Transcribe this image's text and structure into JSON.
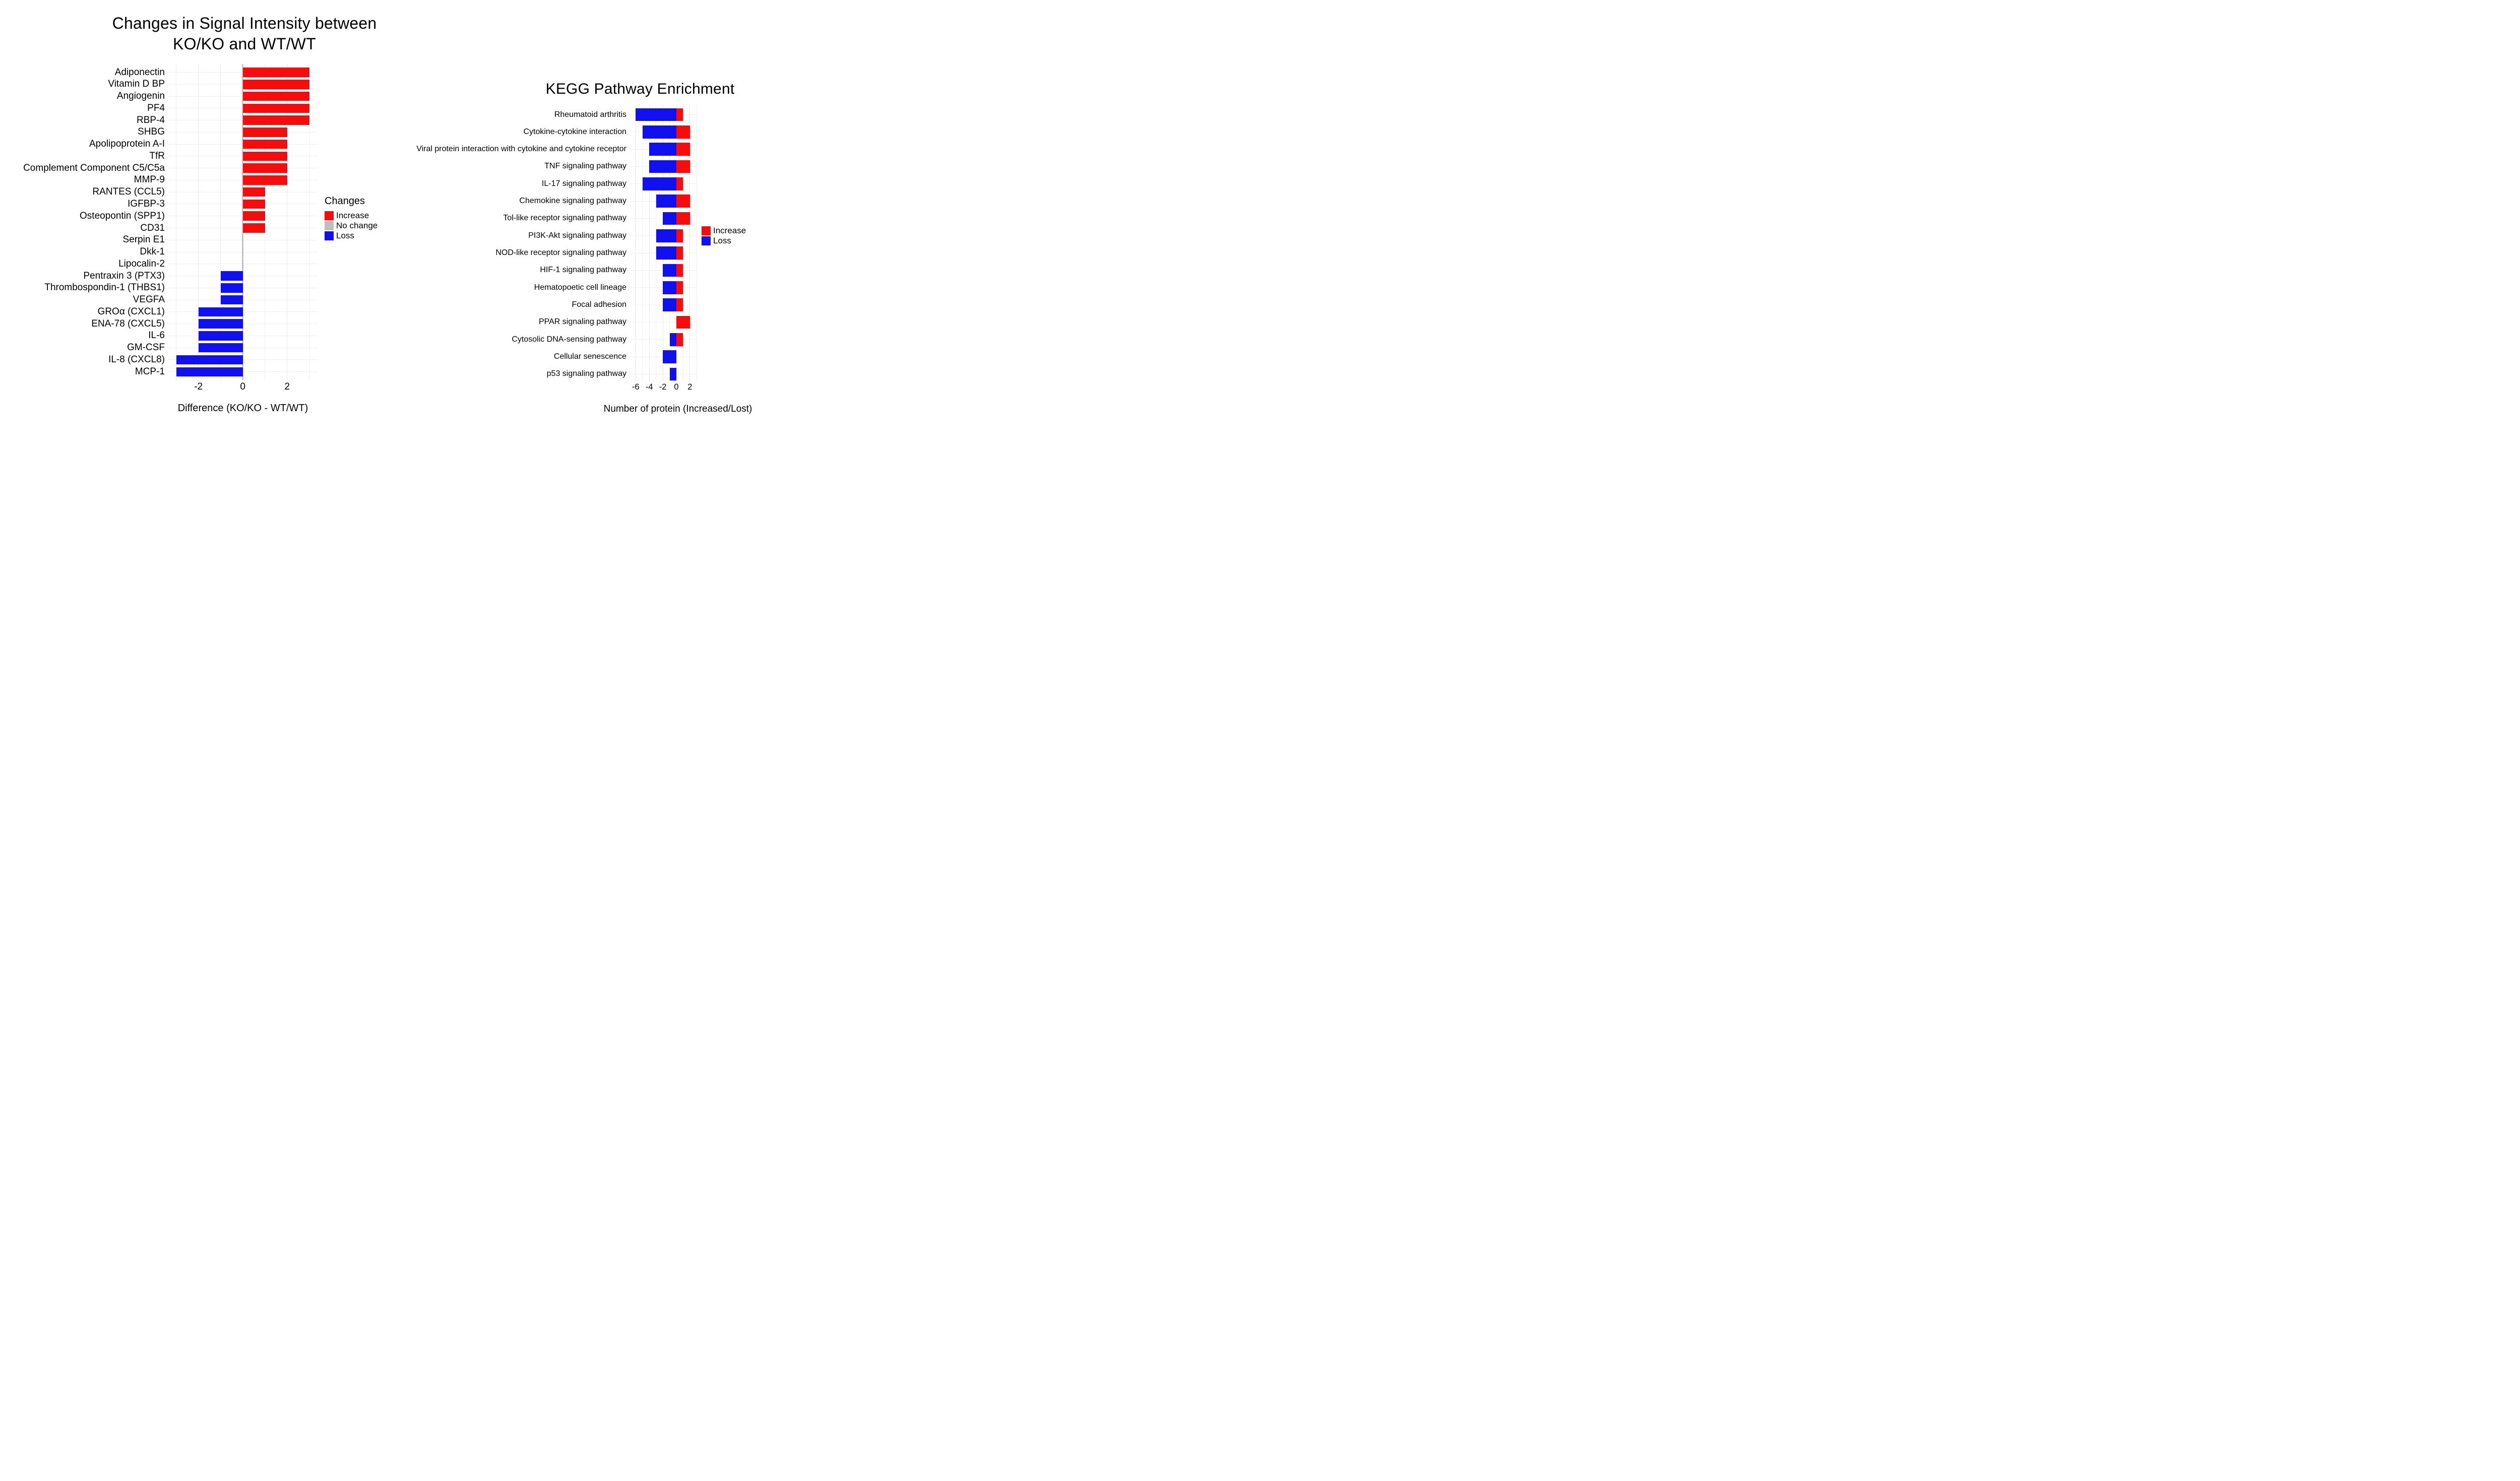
{
  "page": {
    "background": "#ffffff"
  },
  "left_chart_title_lines": [
    "Changes in Signal Intensity between",
    "KO/KO and WT/WT"
  ],
  "chart_data": [
    {
      "type": "bar",
      "orientation": "horizontal",
      "title": "Changes in Signal Intensity between KO/KO and WT/WT",
      "xlabel": "Difference (KO/KO - WT/WT)",
      "ylabel": "",
      "xticks": [
        -2,
        0,
        2
      ],
      "xlim": [
        -3.35,
        3.35
      ],
      "grid": true,
      "colors": {
        "increase": "#f60c0c",
        "no_change": "#bebebe",
        "loss": "#1010f0"
      },
      "legend": {
        "title": "Changes",
        "position": "right",
        "items": [
          {
            "label": "Increase",
            "color": "#f60c0c"
          },
          {
            "label": "No change",
            "color": "#bebebe"
          },
          {
            "label": "Loss",
            "color": "#1010f0"
          }
        ]
      },
      "categories": [
        "Adiponectin",
        "Vitamin D BP",
        "Angiogenin",
        "PF4",
        "RBP-4",
        "SHBG",
        "Apolipoprotein A-I",
        "TfR",
        "Complement Component C5/C5a",
        "MMP-9",
        "RANTES (CCL5)",
        "IGFBP-3",
        "Osteopontin (SPP1)",
        "CD31",
        "Serpin E1",
        "Dkk-1",
        "Lipocalin-2",
        "Pentraxin 3 (PTX3)",
        "Thrombospondin-1 (THBS1)",
        "VEGFA",
        "GROα (CXCL1)",
        "ENA-78 (CXCL5)",
        "IL-6",
        "GM-CSF",
        "IL-8 (CXCL8)",
        "MCP-1"
      ],
      "values": [
        3,
        3,
        3,
        3,
        3,
        2,
        2,
        2,
        2,
        2,
        1,
        1,
        1,
        1,
        0,
        0,
        0,
        -1,
        -1,
        -1,
        -2,
        -2,
        -2,
        -2,
        -3,
        -3
      ]
    },
    {
      "type": "diverging-bar",
      "orientation": "horizontal",
      "title": "KEGG Pathway Enrichment",
      "xlabel": "Number of protein (Increased/Lost)",
      "ylabel": "",
      "xticks": [
        -6,
        -4,
        -2,
        0,
        2
      ],
      "xlim": [
        -6.9,
        3.1
      ],
      "grid": true,
      "colors": {
        "increase": "#f60c0c",
        "loss": "#1010f0"
      },
      "legend": {
        "title": "",
        "position": "right",
        "items": [
          {
            "label": "Increase",
            "color": "#f60c0c"
          },
          {
            "label": "Loss",
            "color": "#1010f0"
          }
        ]
      },
      "categories": [
        "Rheumatoid arthritis",
        "Cytokine-cytokine interaction",
        "Viral protein interaction with cytokine and cytokine receptor",
        "TNF signaling pathway",
        "IL-17 signaling pathway",
        "Chemokine signaling pathway",
        "Tol-like receptor signaling pathway",
        "PI3K-Akt signaling pathway",
        "NOD-like receptor signaling pathway",
        "HIF-1 signaling pathway",
        "Hematopoetic cell lineage",
        "Focal adhesion",
        "PPAR signaling pathway",
        "Cytosolic DNA-sensing pathway",
        "Cellular senescence",
        "p53 signaling pathway"
      ],
      "series": [
        {
          "name": "Increase",
          "values": [
            1,
            2,
            2,
            2,
            1,
            2,
            2,
            1,
            1,
            1,
            1,
            1,
            2,
            1,
            0,
            0
          ]
        },
        {
          "name": "Loss",
          "values": [
            -6,
            -5,
            -4,
            -4,
            -5,
            -3,
            -2,
            -3,
            -3,
            -2,
            -2,
            -2,
            0,
            -1,
            -2,
            -1
          ]
        }
      ]
    }
  ]
}
